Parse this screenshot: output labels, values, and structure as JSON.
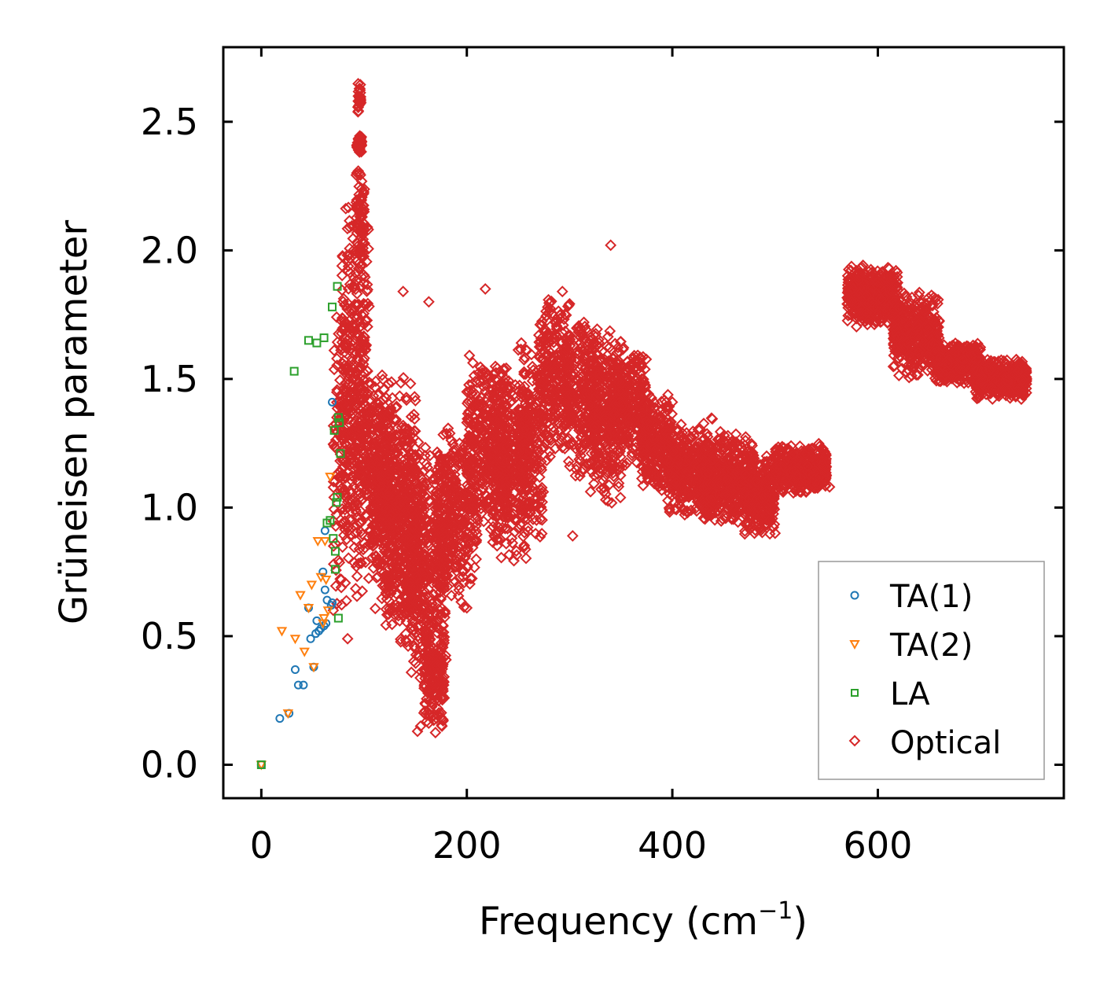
{
  "chart_data": {
    "type": "scatter",
    "xlabel": "Frequency (cm",
    "xlabel_sup": "−1",
    "xlabel_close": ")",
    "ylabel": "Grüneisen parameter",
    "xlim": [
      -37,
      781
    ],
    "ylim": [
      -0.13,
      2.79
    ],
    "xticks": [
      0,
      200,
      400,
      600
    ],
    "xtick_labels": [
      "0",
      "200",
      "400",
      "600"
    ],
    "yticks": [
      0.0,
      0.5,
      1.0,
      1.5,
      2.0,
      2.5
    ],
    "ytick_labels": [
      "0.0",
      "0.5",
      "1.0",
      "1.5",
      "2.0",
      "2.5"
    ],
    "legend_position": "lower-right",
    "series": [
      {
        "name": "TA(1)",
        "marker": "circle",
        "color": "#1f77b4",
        "points": [
          [
            0,
            0.0
          ],
          [
            18,
            0.18
          ],
          [
            27,
            0.2
          ],
          [
            33,
            0.37
          ],
          [
            36,
            0.31
          ],
          [
            41,
            0.31
          ],
          [
            46,
            0.61
          ],
          [
            48,
            0.49
          ],
          [
            51,
            0.38
          ],
          [
            53,
            0.51
          ],
          [
            54,
            0.56
          ],
          [
            56,
            0.52
          ],
          [
            58,
            0.53
          ],
          [
            60,
            0.75
          ],
          [
            61,
            0.54
          ],
          [
            62,
            0.91
          ],
          [
            62,
            0.68
          ],
          [
            63,
            0.55
          ],
          [
            64,
            0.64
          ],
          [
            68,
            0.62
          ],
          [
            69,
            0.63
          ],
          [
            69,
            1.41
          ]
        ]
      },
      {
        "name": "TA(2)",
        "marker": "triangle-down",
        "color": "#ff7f0e",
        "points": [
          [
            0,
            0.0
          ],
          [
            20,
            0.52
          ],
          [
            26,
            0.2
          ],
          [
            33,
            0.49
          ],
          [
            38,
            0.66
          ],
          [
            42,
            0.44
          ],
          [
            46,
            0.61
          ],
          [
            49,
            0.7
          ],
          [
            51,
            0.38
          ],
          [
            55,
            0.87
          ],
          [
            58,
            0.73
          ],
          [
            60,
            0.55
          ],
          [
            61,
            0.57
          ],
          [
            62,
            0.87
          ],
          [
            63,
            0.72
          ],
          [
            65,
            0.6
          ],
          [
            67,
            1.12
          ]
        ]
      },
      {
        "name": "LA",
        "marker": "square",
        "color": "#2ca02c",
        "points": [
          [
            0,
            0.0
          ],
          [
            32,
            1.53
          ],
          [
            46,
            1.65
          ],
          [
            54,
            1.64
          ],
          [
            61,
            1.66
          ],
          [
            64,
            0.94
          ],
          [
            67,
            0.95
          ],
          [
            69,
            1.78
          ],
          [
            70,
            0.88
          ],
          [
            71,
            1.3
          ],
          [
            72,
            0.83
          ],
          [
            72,
            0.76
          ],
          [
            73,
            1.02
          ],
          [
            74,
            1.86
          ],
          [
            74,
            1.04
          ],
          [
            75,
            1.35
          ],
          [
            75,
            0.57
          ],
          [
            76,
            1.33
          ],
          [
            77,
            1.21
          ]
        ]
      },
      {
        "name": "Optical",
        "marker": "diamond",
        "color": "#d62728",
        "points": [],
        "segments": [
          [
            70,
            100,
            0.55,
            1.95
          ],
          [
            78,
            105,
            0.8,
            2.32
          ],
          [
            92,
            100,
            1.9,
            2.35
          ],
          [
            93,
            98,
            2.38,
            2.45
          ],
          [
            94,
            97,
            2.52,
            2.66
          ],
          [
            100,
            125,
            0.7,
            1.55
          ],
          [
            108,
            135,
            0.55,
            1.45
          ],
          [
            120,
            150,
            0.45,
            1.55
          ],
          [
            135,
            160,
            0.38,
            1.35
          ],
          [
            145,
            180,
            0.25,
            1.25
          ],
          [
            158,
            178,
            0.12,
            0.6
          ],
          [
            170,
            210,
            0.6,
            1.35
          ],
          [
            200,
            240,
            0.9,
            1.6
          ],
          [
            225,
            260,
            0.75,
            1.55
          ],
          [
            250,
            275,
            0.8,
            1.7
          ],
          [
            270,
            300,
            1.15,
            1.85
          ],
          [
            295,
            330,
            1.1,
            1.8
          ],
          [
            320,
            350,
            1.0,
            1.7
          ],
          [
            340,
            375,
            1.15,
            1.65
          ],
          [
            370,
            400,
            1.05,
            1.45
          ],
          [
            395,
            440,
            0.95,
            1.35
          ],
          [
            430,
            480,
            0.92,
            1.3
          ],
          [
            470,
            500,
            0.88,
            1.22
          ],
          [
            500,
            550,
            1.05,
            1.25
          ],
          [
            570,
            620,
            1.7,
            1.95
          ],
          [
            615,
            660,
            1.5,
            1.85
          ],
          [
            655,
            700,
            1.48,
            1.65
          ],
          [
            695,
            745,
            1.42,
            1.58
          ]
        ],
        "outliers": [
          [
            340,
            2.02
          ],
          [
            218,
            1.85
          ],
          [
            163,
            1.8
          ],
          [
            138,
            1.84
          ],
          [
            293,
            1.84
          ],
          [
            303,
            0.89
          ],
          [
            553,
            1.08
          ],
          [
            500,
            0.9
          ],
          [
            200,
            0.61
          ],
          [
            84,
            0.49
          ],
          [
            152,
            0.13
          ],
          [
            155,
            0.15
          ],
          [
            178,
            0.26
          ],
          [
            175,
            0.39
          ]
        ]
      }
    ]
  }
}
